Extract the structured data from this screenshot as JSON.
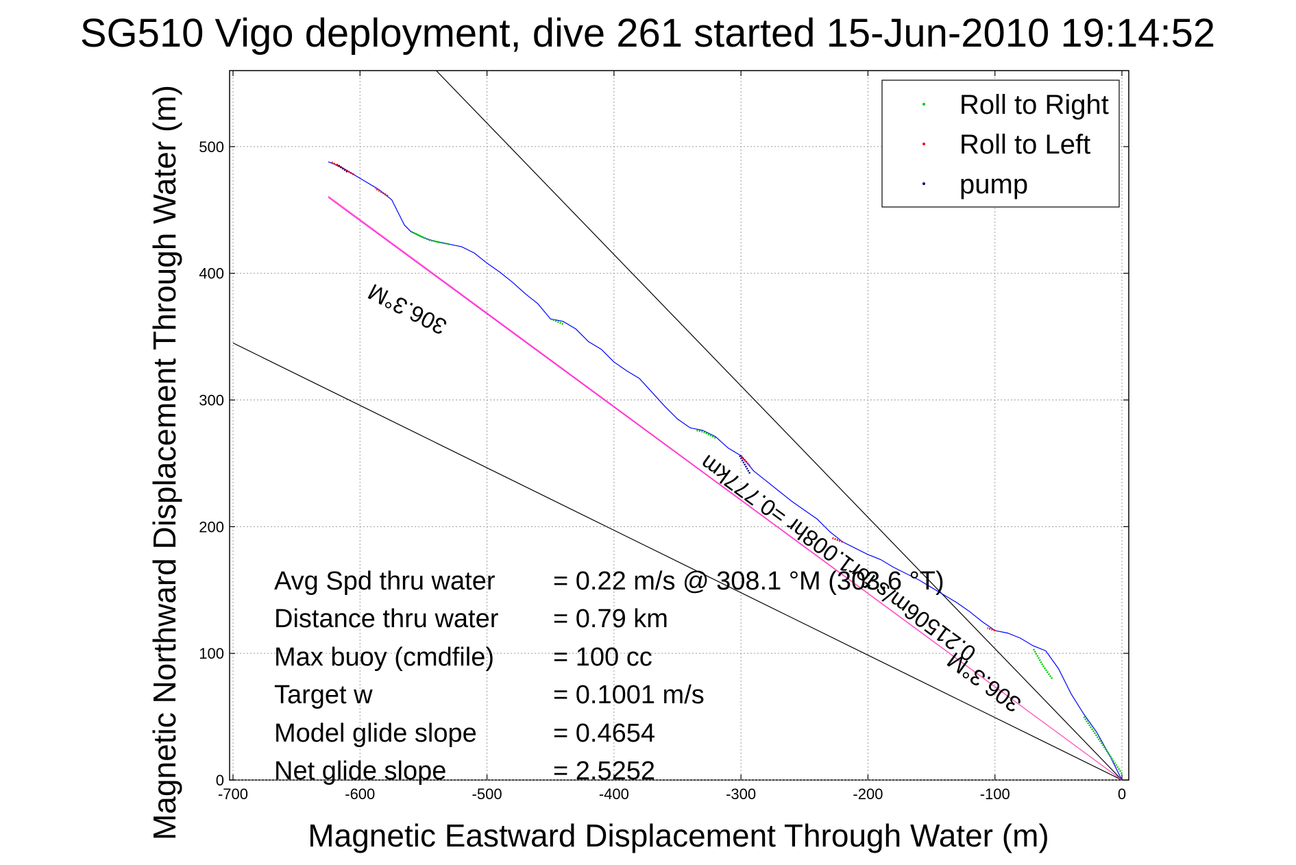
{
  "chart_data": {
    "type": "line",
    "title": "SG510 Vigo deployment, dive 261 started 15-Jun-2010 19:14:52",
    "xlabel": "Magnetic Eastward Displacement Through Water (m)",
    "ylabel": "Magnetic Northward Displacement Through Water (m)",
    "xlim": [
      -700,
      0
    ],
    "ylim": [
      0,
      560
    ],
    "xticks": [
      -700,
      -600,
      -500,
      -400,
      -300,
      -200,
      -100,
      0
    ],
    "yticks": [
      0,
      100,
      200,
      300,
      400,
      500
    ],
    "xtick_labels": [
      "-700",
      "-600",
      "-500",
      "-400",
      "-300",
      "-200",
      "-100",
      "0"
    ],
    "ytick_labels": [
      "0",
      "100",
      "200",
      "300",
      "400",
      "500"
    ],
    "grid": true,
    "legend_position": "top-right",
    "track": {
      "color": "#0000ff",
      "x": [
        0,
        -10,
        -20,
        -30,
        -40,
        -50,
        -60,
        -70,
        -80,
        -90,
        -100,
        -110,
        -120,
        -130,
        -140,
        -150,
        -160,
        -170,
        -180,
        -190,
        -200,
        -210,
        -220,
        -230,
        -240,
        -250,
        -260,
        -270,
        -280,
        -290,
        -300,
        -310,
        -320,
        -330,
        -340,
        -350,
        -360,
        -370,
        -380,
        -390,
        -400,
        -410,
        -420,
        -430,
        -440,
        -450,
        -460,
        -470,
        -480,
        -490,
        -500,
        -510,
        -520,
        -530,
        -540,
        -550,
        -560,
        -565,
        -570,
        -575,
        -580,
        -585,
        -590,
        -595,
        -600,
        -605,
        -610,
        -615,
        -620,
        -625
      ],
      "y": [
        0,
        20,
        38,
        52,
        68,
        88,
        102,
        106,
        112,
        116,
        118,
        125,
        133,
        140,
        146,
        152,
        158,
        163,
        168,
        174,
        178,
        183,
        188,
        196,
        206,
        213,
        220,
        228,
        236,
        244,
        256,
        262,
        271,
        276,
        278,
        285,
        295,
        306,
        317,
        323,
        330,
        340,
        346,
        356,
        362,
        364,
        376,
        384,
        393,
        401,
        408,
        416,
        421,
        423,
        425,
        428,
        433,
        438,
        448,
        458,
        462,
        466,
        469,
        472,
        475,
        478,
        481,
        484,
        486,
        488
      ]
    },
    "series": [
      {
        "name": "Roll to Right",
        "color": "#00cc00",
        "segments": [
          [
            [
              0,
              5
            ],
            [
              -20,
              35
            ],
            [
              -30,
              50
            ]
          ],
          [
            [
              -55,
              80
            ],
            [
              -62,
              90
            ],
            [
              -70,
              104
            ]
          ],
          [
            [
              -320,
              270
            ],
            [
              -330,
              275
            ],
            [
              -335,
              276
            ]
          ],
          [
            [
              -440,
              360
            ],
            [
              -450,
              364
            ]
          ],
          [
            [
              -530,
              423
            ],
            [
              -545,
              426
            ],
            [
              -560,
              433
            ]
          ]
        ]
      },
      {
        "name": "Roll to Left",
        "color": "#ff0000",
        "segments": [
          [
            [
              -100,
              118
            ],
            [
              -106,
              120
            ]
          ],
          [
            [
              -220,
              188
            ],
            [
              -228,
              191
            ]
          ],
          [
            [
              -293,
              248
            ],
            [
              -300,
              256
            ]
          ],
          [
            [
              -578,
              461
            ],
            [
              -588,
              467
            ]
          ],
          [
            [
              -605,
              478
            ],
            [
              -623,
              488
            ]
          ]
        ]
      },
      {
        "name": "pump",
        "color": "#000080",
        "segments": [
          [
            [
              -293,
              242
            ],
            [
              -301,
              256
            ]
          ],
          [
            [
              -610,
              480
            ],
            [
              -618,
              486
            ]
          ]
        ]
      }
    ],
    "reference_lines": [
      {
        "name": "cone-left",
        "color": "#000000",
        "points": [
          [
            0,
            0
          ],
          [
            -700,
            345
          ]
        ]
      },
      {
        "name": "cone-right",
        "color": "#000000",
        "points": [
          [
            0,
            0
          ],
          [
            -540,
            560
          ]
        ]
      },
      {
        "name": "heading-line",
        "color": "#ff00ff",
        "points": [
          [
            0,
            0
          ],
          [
            -625,
            460
          ]
        ]
      },
      {
        "name": "current-line",
        "color": "#ff69b4",
        "points": [
          [
            0,
            0
          ],
          [
            -625,
            461
          ]
        ]
      }
    ],
    "annotations": [
      {
        "text": "306.3°M",
        "x": -560,
        "y": 377,
        "angle": 207
      },
      {
        "text": "0.21506m/s for1.008hr =0.777km",
        "x": -220,
        "y": 180,
        "angle": 216
      },
      {
        "text": "306.3°M",
        "x": -105,
        "y": 82,
        "angle": 216
      }
    ],
    "stats": [
      {
        "label": "Avg Spd thru water",
        "value": "=  0.22 m/s @ 308.1 °M (303.6 °T)"
      },
      {
        "label": "Distance thru water",
        "value": "=  0.79 km"
      },
      {
        "label": "Max buoy (cmdfile)",
        "value": "= 100 cc"
      },
      {
        "label": "Target w",
        "value": "= 0.1001 m/s"
      },
      {
        "label": "Model glide slope",
        "value": "= 0.4654"
      },
      {
        "label": "Net glide slope",
        "value": "= 2.5252"
      }
    ]
  }
}
